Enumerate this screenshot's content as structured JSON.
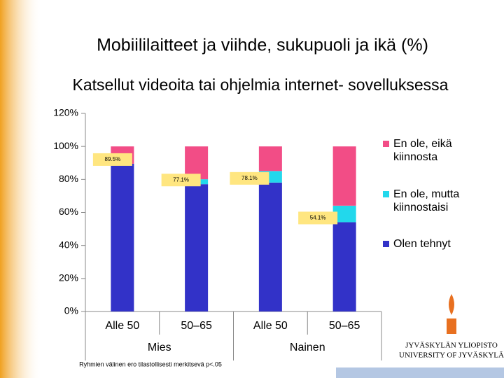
{
  "chart_data": {
    "type": "stacked_bar",
    "title": "Mobiililaitteet ja viihde, sukupuoli ja ikä (%)",
    "subtitle": "Katsellut videoita tai ohjelmia internet- sovelluksessa",
    "categories": [
      "Alle 50",
      "50–65",
      "Alle 50",
      "50–65"
    ],
    "groups": [
      "Mies",
      "Nainen"
    ],
    "series": [
      {
        "name": "Olen tehnyt",
        "color": "#3232c8",
        "values": [
          89.5,
          77.1,
          78.1,
          54.1
        ],
        "value_labels": [
          "89.5%",
          "77.1%",
          "78.1%",
          "54.1%"
        ]
      },
      {
        "name": "En ole, mutta kiinnostaisi",
        "color": "#22d8ec",
        "values": [
          0,
          3,
          7,
          10
        ]
      },
      {
        "name": "En ole, eikä kiinnosta",
        "color": "#f24d86",
        "values": [
          10.5,
          19.9,
          14.9,
          35.9
        ]
      }
    ],
    "ylim": [
      0,
      120
    ],
    "yticks": [
      {
        "value": 0,
        "label": "0%"
      },
      {
        "value": 20,
        "label": "20%"
      },
      {
        "value": 40,
        "label": "40%"
      },
      {
        "value": 60,
        "label": "60%"
      },
      {
        "value": 80,
        "label": "80%"
      },
      {
        "value": 100,
        "label": "100%"
      },
      {
        "value": 120,
        "label": "120%"
      }
    ],
    "legend": "right",
    "footnote": "Ryhmien välinen ero tilastollisesti merkitsevä p<.05"
  },
  "logo": {
    "line1": "JYVÄSKYLÄN YLIOPISTO",
    "line2": "UNIVERSITY OF JYVÄSKYLÄ"
  }
}
